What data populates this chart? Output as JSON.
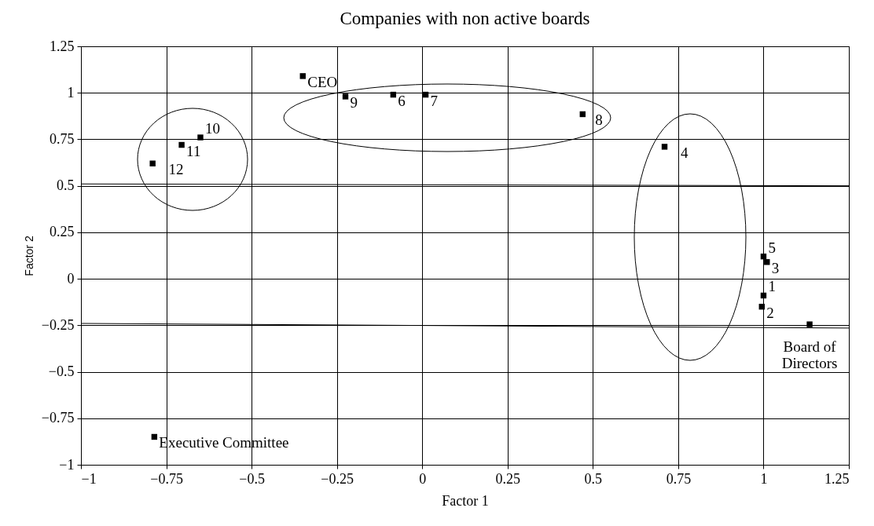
{
  "chart_data": {
    "type": "scatter",
    "title": "Companies with non active boards",
    "xlabel": "Factor 1",
    "ylabel": "Factor 2",
    "xlim": [
      -1,
      1.25
    ],
    "ylim": [
      -1,
      1.25
    ],
    "xticks": [
      -1,
      -0.75,
      -0.5,
      -0.25,
      0,
      0.25,
      0.5,
      0.75,
      1,
      1.25
    ],
    "yticks": [
      -1,
      -0.75,
      -0.5,
      -0.25,
      0,
      0.25,
      0.5,
      0.75,
      1,
      1.25
    ],
    "grid": true,
    "marker": "square",
    "series": [
      {
        "type": "scatter",
        "color": "#000000",
        "x": [
          -0.35,
          -0.225,
          -0.085,
          0.01,
          0.47,
          0.71,
          1.0,
          1.01,
          1.0,
          0.995,
          1.135,
          -0.79,
          -0.705,
          -0.65,
          -0.785
        ],
        "values": [
          1.09,
          0.98,
          0.99,
          0.99,
          0.885,
          0.71,
          0.12,
          0.09,
          -0.09,
          -0.15,
          -0.245,
          0.62,
          0.72,
          0.76,
          -0.85
        ]
      },
      {
        "type": "line",
        "color": "#000000",
        "marker": "none",
        "x": [
          -1,
          1.25
        ],
        "values": [
          0.51,
          0.5
        ]
      },
      {
        "type": "line",
        "color": "#000000",
        "marker": "none",
        "x": [
          -1,
          1.25
        ],
        "values": [
          -0.24,
          -0.265
        ]
      }
    ],
    "annotations": [
      {
        "text": "CEO",
        "x": -0.35,
        "y": 1.09
      },
      {
        "text": "9",
        "x": -0.225,
        "y": 0.98
      },
      {
        "text": "6",
        "x": -0.085,
        "y": 0.99
      },
      {
        "text": "7",
        "x": 0.01,
        "y": 0.99
      },
      {
        "text": "8",
        "x": 0.47,
        "y": 0.885
      },
      {
        "text": "4",
        "x": 0.71,
        "y": 0.71
      },
      {
        "text": "5",
        "x": 1.0,
        "y": 0.12
      },
      {
        "text": "3",
        "x": 1.01,
        "y": 0.09
      },
      {
        "text": "1",
        "x": 1.0,
        "y": -0.09
      },
      {
        "text": "2",
        "x": 0.995,
        "y": -0.15
      },
      {
        "text": "Board of\nDirectors",
        "x": 1.135,
        "y": -0.245
      },
      {
        "text": "12",
        "x": -0.79,
        "y": 0.62
      },
      {
        "text": "11",
        "x": -0.705,
        "y": 0.72
      },
      {
        "text": "10",
        "x": -0.65,
        "y": 0.76
      },
      {
        "text": "Executive Committee",
        "x": -0.785,
        "y": -0.85
      }
    ]
  }
}
